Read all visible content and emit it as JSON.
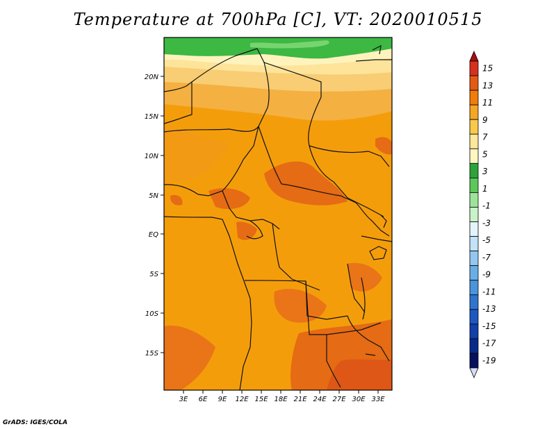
{
  "title": "Temperature at 700hPa [C], VT: 2020010515",
  "footer": "GrADS: IGES/COLA",
  "map": {
    "lat_ticks": [
      "20N",
      "15N",
      "10N",
      "5N",
      "EQ",
      "5S",
      "10S",
      "15S"
    ],
    "lon_ticks": [
      "3E",
      "6E",
      "9E",
      "12E",
      "15E",
      "18E",
      "21E",
      "24E",
      "27E",
      "30E",
      "33E"
    ]
  },
  "colorbar": {
    "labels": [
      "15",
      "13",
      "11",
      "9",
      "7",
      "5",
      "3",
      "1",
      "-1",
      "-3",
      "-5",
      "-7",
      "-9",
      "-11",
      "-13",
      "-15",
      "-17",
      "-19"
    ],
    "colors": [
      "#a50f15",
      "#d7301f",
      "#e35a14",
      "#f07c0a",
      "#f5a623",
      "#f9c94a",
      "#fde79a",
      "#fff6c2",
      "#2ea33a",
      "#5cc85a",
      "#9de49a",
      "#c9f2c8",
      "#e3f4fb",
      "#c1e2f7",
      "#93c7ef",
      "#6aaee6",
      "#4a93dd",
      "#2f75cf",
      "#1c58bf",
      "#123fa8",
      "#0a2a8a",
      "#08105e",
      "#d7dcf5"
    ]
  }
}
